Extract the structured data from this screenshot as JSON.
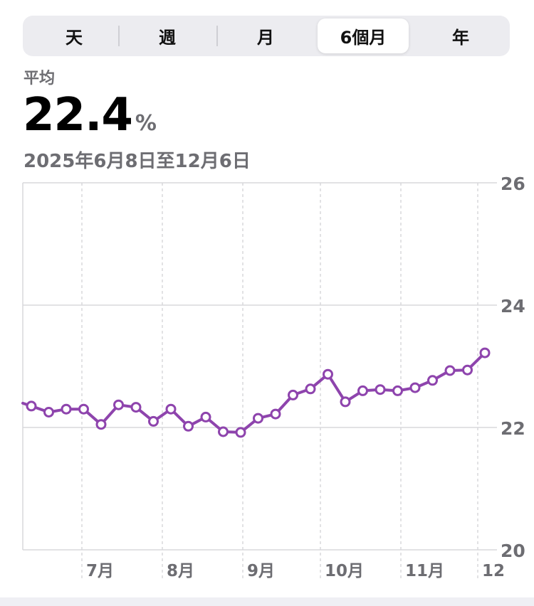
{
  "segmented_control": {
    "items": [
      "天",
      "週",
      "月",
      "6個月",
      "年"
    ],
    "selected_index": 3
  },
  "summary": {
    "label": "平均",
    "value": "22.4",
    "unit": "%",
    "date_range": "2025年6月8日至12月6日"
  },
  "colors": {
    "series": "#8e44ad",
    "grid": "#d8d8dc",
    "axis_text": "#6d6d72"
  },
  "chart_data": {
    "type": "line",
    "title": "",
    "xlabel": "",
    "ylabel": "",
    "ylim": [
      20,
      26
    ],
    "y_ticks": [
      "26",
      "24",
      "22",
      "20"
    ],
    "x_tick_labels": [
      "7月",
      "8月",
      "9月",
      "10月",
      "11月",
      "12"
    ],
    "grid": true,
    "y_axis_position": "right",
    "series": [
      {
        "values": [
          22.35,
          22.25,
          22.3,
          22.3,
          22.05,
          22.37,
          22.33,
          22.1,
          22.3,
          22.02,
          22.17,
          21.93,
          21.92,
          22.15,
          22.22,
          22.53,
          22.63,
          22.87,
          22.42,
          22.6,
          22.62,
          22.6,
          22.65,
          22.77,
          22.93,
          22.94,
          23.22
        ]
      }
    ]
  }
}
